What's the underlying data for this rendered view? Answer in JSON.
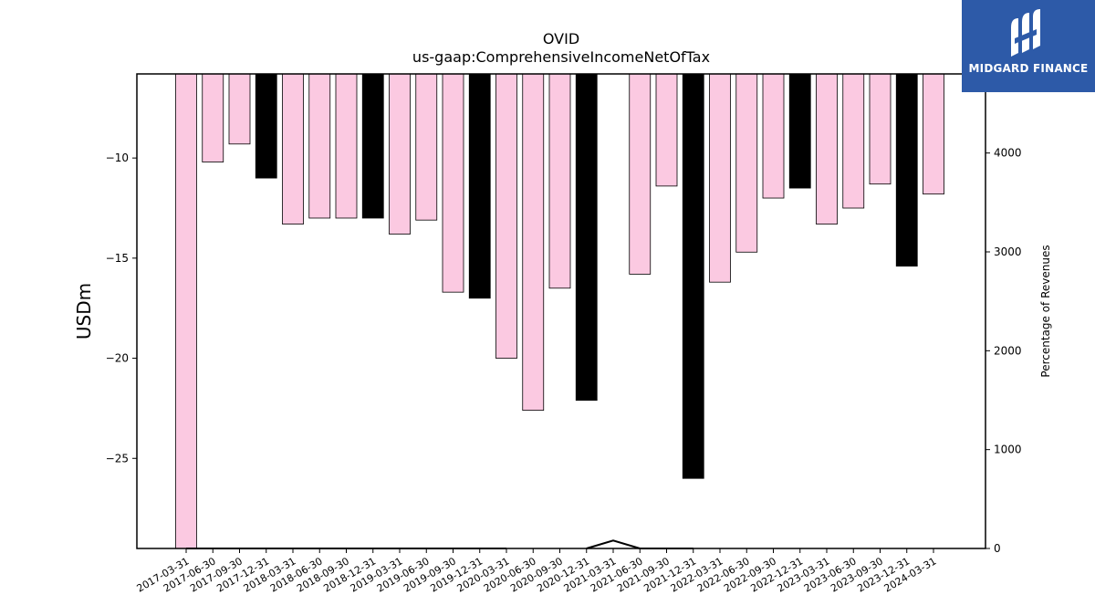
{
  "chart_data": {
    "type": "bar",
    "title": "OVID",
    "subtitle": "us-gaap:ComprehensiveIncomeNetOfTax",
    "ylabel": "USDm",
    "y2label": "Percentage of Revenues",
    "ylim": [
      -29.5,
      -5.8
    ],
    "y2lim": [
      0,
      4800
    ],
    "yticks": [
      -25,
      -20,
      -15,
      -10
    ],
    "y2ticks": [
      0,
      1000,
      2000,
      3000,
      4000
    ],
    "colors": {
      "quarter": "#fbc9e1",
      "year_end": "#000000",
      "edge": "#000000"
    },
    "categories": [
      "2017-03-31",
      "2017-06-30",
      "2017-09-30",
      "2017-12-31",
      "2018-03-31",
      "2018-06-30",
      "2018-09-30",
      "2018-12-31",
      "2019-03-31",
      "2019-06-30",
      "2019-09-30",
      "2019-12-31",
      "2020-03-31",
      "2020-06-30",
      "2020-09-30",
      "2020-12-31",
      "2021-03-31",
      "2021-06-30",
      "2021-09-30",
      "2021-12-31",
      "2022-03-31",
      "2022-06-30",
      "2022-09-30",
      "2022-12-31",
      "2023-03-31",
      "2023-06-30",
      "2023-09-30",
      "2023-12-31",
      "2024-03-31"
    ],
    "values": [
      -29.5,
      -10.2,
      -9.3,
      -11.0,
      -13.3,
      -13.0,
      -13.0,
      -13.0,
      -13.8,
      -13.1,
      -16.7,
      -17.0,
      -20.0,
      -22.6,
      -16.5,
      -22.1,
      null,
      -15.8,
      -11.4,
      -26.0,
      -16.2,
      -14.7,
      -12.0,
      -11.5,
      -13.3,
      -12.5,
      -11.3,
      -15.4,
      -11.8
    ],
    "year_end": [
      false,
      false,
      false,
      true,
      false,
      false,
      false,
      true,
      false,
      false,
      false,
      true,
      false,
      false,
      false,
      true,
      false,
      false,
      false,
      true,
      false,
      false,
      false,
      true,
      false,
      false,
      false,
      true,
      false
    ],
    "line_series": {
      "name": "Percentage of Revenues",
      "x_categories": [
        "2017-03-31",
        "2017-06-30",
        "2017-09-30",
        "2017-12-31",
        "2018-03-31",
        "2018-06-30",
        "2018-09-30",
        "2018-12-31",
        "2019-03-31",
        "2019-06-30",
        "2019-09-30",
        "2019-12-31",
        "2020-03-31",
        "2020-06-30",
        "2020-09-30",
        "2020-12-31",
        "2021-03-31",
        "2021-06-30",
        "2021-09-30",
        "2021-12-31",
        "2022-03-31",
        "2022-06-30",
        "2022-09-30",
        "2022-12-31",
        "2023-03-31",
        "2023-06-30",
        "2023-09-30",
        "2023-12-31",
        "2024-03-31"
      ],
      "values": [
        0,
        0,
        0,
        0,
        0,
        0,
        0,
        0,
        0,
        0,
        0,
        0,
        0,
        null,
        null,
        0,
        80,
        0,
        0,
        0,
        null,
        null,
        null,
        null,
        null,
        null,
        null,
        null,
        null
      ]
    }
  },
  "logo": {
    "text": "MIDGARD FINANCE"
  }
}
